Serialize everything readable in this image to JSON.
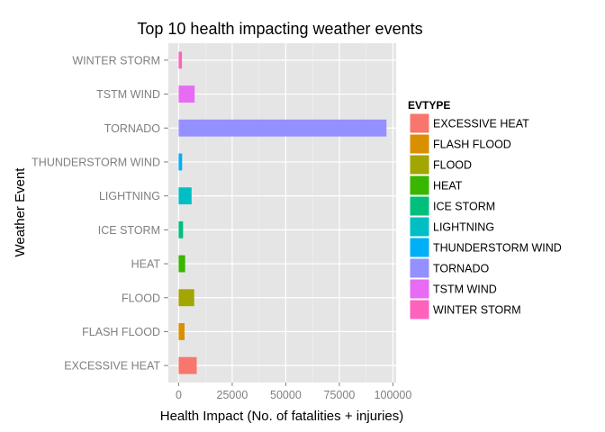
{
  "chart_data": {
    "type": "bar",
    "orientation": "horizontal",
    "title": "Top 10 health impacting weather events",
    "xlabel": "Health Impact (No. of fatalities + injuries)",
    "ylabel": "Weather Event",
    "xlim": [
      -4800,
      101500
    ],
    "x_ticks": [
      0,
      25000,
      50000,
      75000,
      100000
    ],
    "x_tick_labels": [
      "0",
      "25000",
      "50000",
      "75000",
      "100000"
    ],
    "grid": true,
    "legend_position": "right",
    "legend_title": "EVTYPE",
    "categories": [
      "EXCESSIVE HEAT",
      "FLASH FLOOD",
      "FLOOD",
      "HEAT",
      "ICE STORM",
      "LIGHTNING",
      "THUNDERSTORM WIND",
      "TORNADO",
      "TSTM WIND",
      "WINTER STORM"
    ],
    "values": [
      8428,
      2755,
      7259,
      3037,
      2064,
      6046,
      1621,
      96979,
      7461,
      1527
    ],
    "colors": [
      "#F8766D",
      "#D89000",
      "#A3A500",
      "#39B600",
      "#00BF7D",
      "#00BFC4",
      "#00B0F6",
      "#9590FF",
      "#E76BF3",
      "#FF62BC"
    ]
  }
}
